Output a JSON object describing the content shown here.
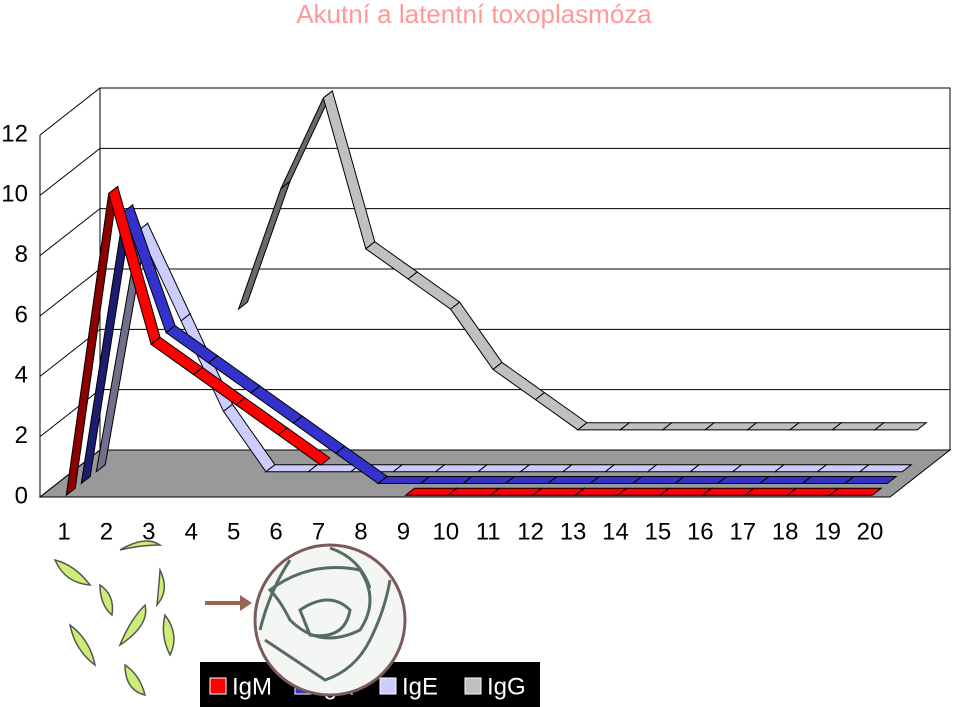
{
  "chart_data": {
    "type": "line3d",
    "title": "Akutní a latentní toxoplasmóza",
    "categories": [
      "1",
      "2",
      "3",
      "4",
      "5",
      "6",
      "7",
      "8",
      "9",
      "10",
      "11",
      "12",
      "13",
      "14",
      "15",
      "16",
      "17",
      "18",
      "19",
      "20"
    ],
    "series": [
      {
        "name": "IgM",
        "color": "#ff0000",
        "values": [
          0,
          10,
          5,
          4,
          3,
          2,
          1,
          null,
          0,
          0,
          0,
          0,
          0,
          0,
          0,
          0,
          0,
          0,
          0,
          0
        ]
      },
      {
        "name": "IgA",
        "color": "#3333cc",
        "values": [
          0,
          9,
          5,
          4,
          3,
          2,
          1,
          0,
          0,
          0,
          0,
          0,
          0,
          0,
          0,
          0,
          0,
          0,
          0,
          0
        ]
      },
      {
        "name": "IgE",
        "color": "#ccccff",
        "values": [
          0,
          8,
          5,
          2,
          0,
          0,
          0,
          0,
          0,
          0,
          0,
          0,
          0,
          0,
          0,
          0,
          0,
          0,
          0,
          0
        ]
      },
      {
        "name": "IgG",
        "color": "#c0c0c0",
        "values": [
          null,
          null,
          null,
          5,
          9,
          12,
          7,
          6,
          5,
          3,
          2,
          1,
          1,
          1,
          1,
          1,
          1,
          1,
          1,
          1
        ]
      }
    ],
    "ylim": [
      0,
      12
    ],
    "yticks": [
      0,
      2,
      4,
      6,
      8,
      10,
      12
    ],
    "grid": true
  }
}
